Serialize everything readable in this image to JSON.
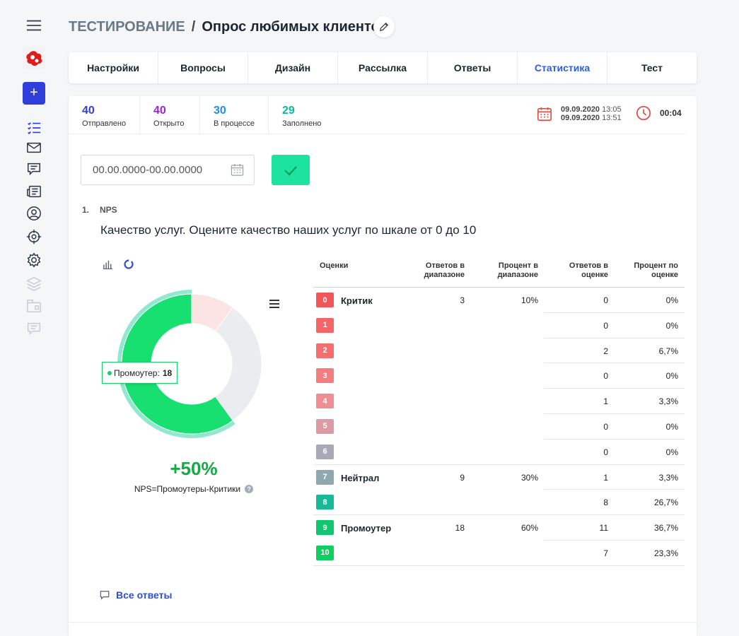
{
  "header": {
    "root": "ТЕСТИРОВАНИЕ",
    "sep": "/",
    "title": "Опрос любимых клиентов"
  },
  "tabs": [
    {
      "label": "Настройки"
    },
    {
      "label": "Вопросы"
    },
    {
      "label": "Дизайн"
    },
    {
      "label": "Рассылка"
    },
    {
      "label": "Ответы"
    },
    {
      "label": "Статистика",
      "active": true
    },
    {
      "label": "Тест"
    }
  ],
  "stats": {
    "sent": {
      "value": "40",
      "label": "Отправлено",
      "color": "#2f3edb"
    },
    "opened": {
      "value": "40",
      "label": "Открыто",
      "color": "#9b21d8"
    },
    "in_progress": {
      "value": "30",
      "label": "В процессе",
      "color": "#1e8ee8"
    },
    "completed": {
      "value": "29",
      "label": "Заполнено",
      "color": "#11b8a0"
    }
  },
  "dates": {
    "start_date": "09.09.2020",
    "start_time": "13:05",
    "end_date": "09.09.2020",
    "end_time": "13:51",
    "duration": "00:04"
  },
  "filter": {
    "date_range": "00.00.0000-00.00.0000"
  },
  "question": {
    "number": "1.",
    "type": "NPS",
    "text": "Качество услуг. Оцените качество наших услуг по шкале от 0 до 10"
  },
  "chart_data": {
    "type": "pie",
    "donut": true,
    "slices": [
      {
        "label": "Промоутер",
        "value": 18,
        "color": "#17e070"
      },
      {
        "label": "Критик",
        "value": 3,
        "color": "#fde4e4"
      },
      {
        "label": "Нейтрал",
        "value": 9,
        "color": "#ebecf0"
      }
    ],
    "tooltip": {
      "label": "Промоутер:",
      "value": "18"
    },
    "nps_value": "+50%",
    "formula": "NPS=Промоутеры-Критики"
  },
  "table": {
    "headers": {
      "score": "Оценки",
      "range_count_1": "Ответов в",
      "range_count_2": "диапазоне",
      "range_pct_1": "Процент в",
      "range_pct_2": "диапазоне",
      "score_count_1": "Ответов в",
      "score_count_2": "оценке",
      "score_pct_1": "Процент по",
      "score_pct_2": "оценке"
    },
    "rows": [
      {
        "score": "0",
        "color": "#f0575a",
        "category": "Критик",
        "range_count": "3",
        "range_pct": "10%",
        "count": "0",
        "pct": "0%"
      },
      {
        "score": "1",
        "color": "#f56566",
        "category": "",
        "range_count": "",
        "range_pct": "",
        "count": "0",
        "pct": "0%"
      },
      {
        "score": "2",
        "color": "#f46e6e",
        "category": "",
        "range_count": "",
        "range_pct": "",
        "count": "2",
        "pct": "6,7%"
      },
      {
        "score": "3",
        "color": "#f47e7e",
        "category": "",
        "range_count": "",
        "range_pct": "",
        "count": "0",
        "pct": "0%"
      },
      {
        "score": "4",
        "color": "#ef8e92",
        "category": "",
        "range_count": "",
        "range_pct": "",
        "count": "1",
        "pct": "3,3%"
      },
      {
        "score": "5",
        "color": "#dc9aa4",
        "category": "",
        "range_count": "",
        "range_pct": "",
        "count": "0",
        "pct": "0%"
      },
      {
        "score": "6",
        "color": "#a9a8b6",
        "category": "",
        "range_count": "",
        "range_pct": "",
        "count": "0",
        "pct": "0%"
      },
      {
        "score": "7",
        "color": "#8ea9ae",
        "category": "Нейтрал",
        "range_count": "9",
        "range_pct": "30%",
        "count": "1",
        "pct": "3,3%"
      },
      {
        "score": "8",
        "color": "#19b898",
        "category": "",
        "range_count": "",
        "range_pct": "",
        "count": "8",
        "pct": "26,7%"
      },
      {
        "score": "9",
        "color": "#12c56f",
        "category": "Промоутер",
        "range_count": "18",
        "range_pct": "60%",
        "count": "11",
        "pct": "36,7%"
      },
      {
        "score": "10",
        "color": "#10cf60",
        "category": "",
        "range_count": "",
        "range_pct": "",
        "count": "7",
        "pct": "23,3%"
      }
    ]
  },
  "all_answers": "Все ответы"
}
